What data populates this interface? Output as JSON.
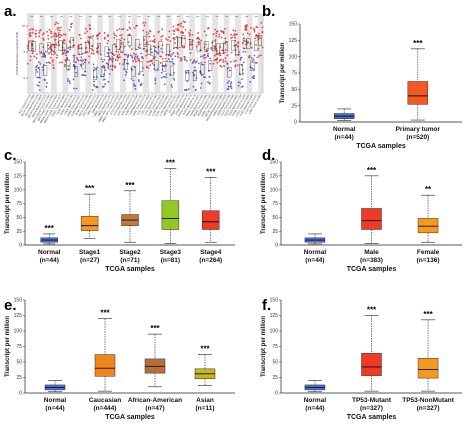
{
  "panel_a": {
    "letter": "a.",
    "y_label": "FOXM1 Expression Level (log2 TPM)",
    "y_ticks": [
      "10",
      "5",
      "0"
    ],
    "sig_marks": [
      "***",
      "***",
      "***",
      "***",
      "***",
      "***",
      "***",
      "***",
      "***",
      "***",
      "***",
      "***",
      "***",
      "***",
      "***",
      "***",
      "***",
      "***",
      "***",
      "***",
      "***",
      "***",
      "***",
      "***"
    ],
    "x_labels": [
      "ACC.Tumor (n=79)",
      "BLCA.Tumor (n=408)",
      "BLCA.Normal (n=19)",
      "BRCA.Tumor (n=1093)",
      "BRCA.Normal (n=112)",
      "BRCA-Basal.Tumor (n=190)",
      "BRCA-Her2.Tumor (n=82)",
      "BRCA-LumA.Tumor (n=564)",
      "BRCA-LumB.Tumor (n=217)",
      "CESC.Tumor (n=304)",
      "CESC.Normal (n=3)",
      "CHOL.Tumor (n=36)",
      "CHOL.Normal (n=9)",
      "COAD.Tumor (n=457)",
      "COAD.Normal (n=41)",
      "DLBC.Tumor (n=48)",
      "ESCA.Tumor (n=184)",
      "ESCA.Normal (n=11)",
      "GBM.Tumor (n=153)",
      "GBM.Normal (n=5)",
      "HNSC.Tumor (n=520)",
      "HNSC.Normal (n=44)",
      "HNSC-HPV+.Tumor (n=97)",
      "HNSC-HPV-.Tumor (n=421)",
      "KICH.Tumor (n=66)",
      "KICH.Normal (n=25)",
      "KIRC.Tumor (n=533)",
      "KIRC.Normal (n=72)",
      "KIRP.Tumor (n=290)",
      "KIRP.Normal (n=32)",
      "LAML.Tumor (n=173)",
      "LGG.Tumor (n=516)",
      "LIHC.Tumor (n=371)",
      "LIHC.Normal (n=50)",
      "LUAD.Tumor (n=515)",
      "LUAD.Normal (n=59)",
      "LUSC.Tumor (n=501)",
      "LUSC.Normal (n=51)",
      "MESO.Tumor (n=87)",
      "OV.Tumor (n=303)",
      "PAAD.Tumor (n=178)",
      "PAAD.Normal (n=4)",
      "PCPG.Tumor (n=179)",
      "PCPG.Normal (n=3)",
      "PRAD.Tumor (n=497)",
      "PRAD.Normal (n=52)",
      "READ.Tumor (n=166)",
      "READ.Normal (n=10)",
      "SARC.Tumor (n=259)",
      "SKCM.Tumor (n=103)",
      "SKCM.Metastasis (n=368)",
      "STAD.Tumor (n=415)",
      "STAD.Normal (n=35)",
      "TGCT.Tumor (n=150)",
      "THCA.Tumor (n=501)",
      "THCA.Normal (n=59)",
      "THYM.Tumor (n=120)",
      "UCEC.Tumor (n=545)",
      "UCEC.Normal (n=35)",
      "UCS.Tumor (n=57)",
      "UVM.Tumor (n=80)"
    ]
  },
  "chart_data": [
    {
      "panel": "b.",
      "type": "box",
      "xlabel": "TCGA samples",
      "ylabel": "Transcript per million",
      "ylim": [
        0,
        150
      ],
      "yticks": [
        0,
        25,
        50,
        75,
        100,
        125,
        150
      ],
      "groups": [
        {
          "name": "Normal",
          "n": "(n=44)",
          "color": "#4a6fd8",
          "min": 2,
          "q1": 5,
          "median": 9,
          "q3": 13,
          "max": 20,
          "sig": ""
        },
        {
          "name": "Primary tumor",
          "n": "(n=520)",
          "color": "#f25a23",
          "min": 3,
          "q1": 27,
          "median": 40,
          "q3": 62,
          "max": 112,
          "sig": "***"
        }
      ]
    },
    {
      "panel": "c.",
      "type": "box",
      "xlabel": "TCGA samples",
      "ylabel": "Transcript per million",
      "ylim": [
        0,
        150
      ],
      "yticks": [
        0,
        25,
        50,
        75,
        100,
        125,
        150
      ],
      "groups": [
        {
          "name": "Normal",
          "n": "(n=44)",
          "color": "#4a6fd8",
          "min": 2,
          "q1": 5,
          "median": 9,
          "q3": 13,
          "max": 20,
          "sig": "***"
        },
        {
          "name": "Stage1",
          "n": "(n=27)",
          "color": "#f39a1e",
          "min": 12,
          "q1": 26,
          "median": 35,
          "q3": 52,
          "max": 92,
          "sig": "***"
        },
        {
          "name": "Stage2",
          "n": "(n=71)",
          "color": "#c27a3a",
          "min": 5,
          "q1": 35,
          "median": 45,
          "q3": 55,
          "max": 98,
          "sig": "***"
        },
        {
          "name": "Stage3",
          "n": "(n=81)",
          "color": "#93c822",
          "min": 3,
          "q1": 28,
          "median": 48,
          "q3": 80,
          "max": 138,
          "sig": "***"
        },
        {
          "name": "Stage4",
          "n": "(n=264)",
          "color": "#ee3a26",
          "min": 5,
          "q1": 28,
          "median": 42,
          "q3": 62,
          "max": 122,
          "sig": "***"
        }
      ]
    },
    {
      "panel": "d.",
      "type": "box",
      "xlabel": "TCGA samples",
      "ylabel": "Transcript per million",
      "ylim": [
        0,
        150
      ],
      "yticks": [
        0,
        25,
        50,
        75,
        100,
        125,
        150
      ],
      "groups": [
        {
          "name": "Normal",
          "n": "(n=44)",
          "color": "#4a6fd8",
          "min": 2,
          "q1": 5,
          "median": 9,
          "q3": 13,
          "max": 20,
          "sig": ""
        },
        {
          "name": "Male",
          "n": "(n=383)",
          "color": "#ee3a26",
          "min": 3,
          "q1": 28,
          "median": 44,
          "q3": 66,
          "max": 125,
          "sig": "***"
        },
        {
          "name": "Female",
          "n": "(n=136)",
          "color": "#f39a1e",
          "min": 5,
          "q1": 22,
          "median": 34,
          "q3": 48,
          "max": 90,
          "sig": "**"
        }
      ]
    },
    {
      "panel": "e.",
      "type": "box",
      "xlabel": "TCGA samples",
      "ylabel": "Transcript per million",
      "ylim": [
        0,
        150
      ],
      "yticks": [
        0,
        25,
        50,
        75,
        100,
        125,
        150
      ],
      "groups": [
        {
          "name": "Normal",
          "n": "(n=44)",
          "color": "#4a6fd8",
          "min": 2,
          "q1": 5,
          "median": 9,
          "q3": 13,
          "max": 20,
          "sig": ""
        },
        {
          "name": "Caucasian",
          "n": "(n=444)",
          "color": "#f0861e",
          "min": 3,
          "q1": 27,
          "median": 40,
          "q3": 62,
          "max": 120,
          "sig": "***"
        },
        {
          "name": "African-American",
          "n": "(n=47)",
          "color": "#b5703a",
          "min": 10,
          "q1": 32,
          "median": 43,
          "q3": 55,
          "max": 95,
          "sig": "***"
        },
        {
          "name": "Asian",
          "n": "(n=11)",
          "color": "#c2b81a",
          "min": 12,
          "q1": 23,
          "median": 31,
          "q3": 39,
          "max": 62,
          "sig": "***"
        }
      ]
    },
    {
      "panel": "f.",
      "type": "box",
      "xlabel": "TCGA samples",
      "ylabel": "Transcript per million",
      "ylim": [
        0,
        150
      ],
      "yticks": [
        0,
        25,
        50,
        75,
        100,
        125,
        150
      ],
      "groups": [
        {
          "name": "Normal",
          "n": "(n=44)",
          "color": "#4a6fd8",
          "min": 2,
          "q1": 5,
          "median": 9,
          "q3": 13,
          "max": 20,
          "sig": ""
        },
        {
          "name": "TP53-Mutant",
          "n": "(n=327)",
          "color": "#ee3a26",
          "min": 3,
          "q1": 28,
          "median": 42,
          "q3": 64,
          "max": 125,
          "sig": "***"
        },
        {
          "name": "TP53-NonMutant",
          "n": "(n=327)",
          "color": "#f39a1e",
          "min": 3,
          "q1": 24,
          "median": 38,
          "q3": 56,
          "max": 118,
          "sig": "***"
        }
      ]
    }
  ]
}
